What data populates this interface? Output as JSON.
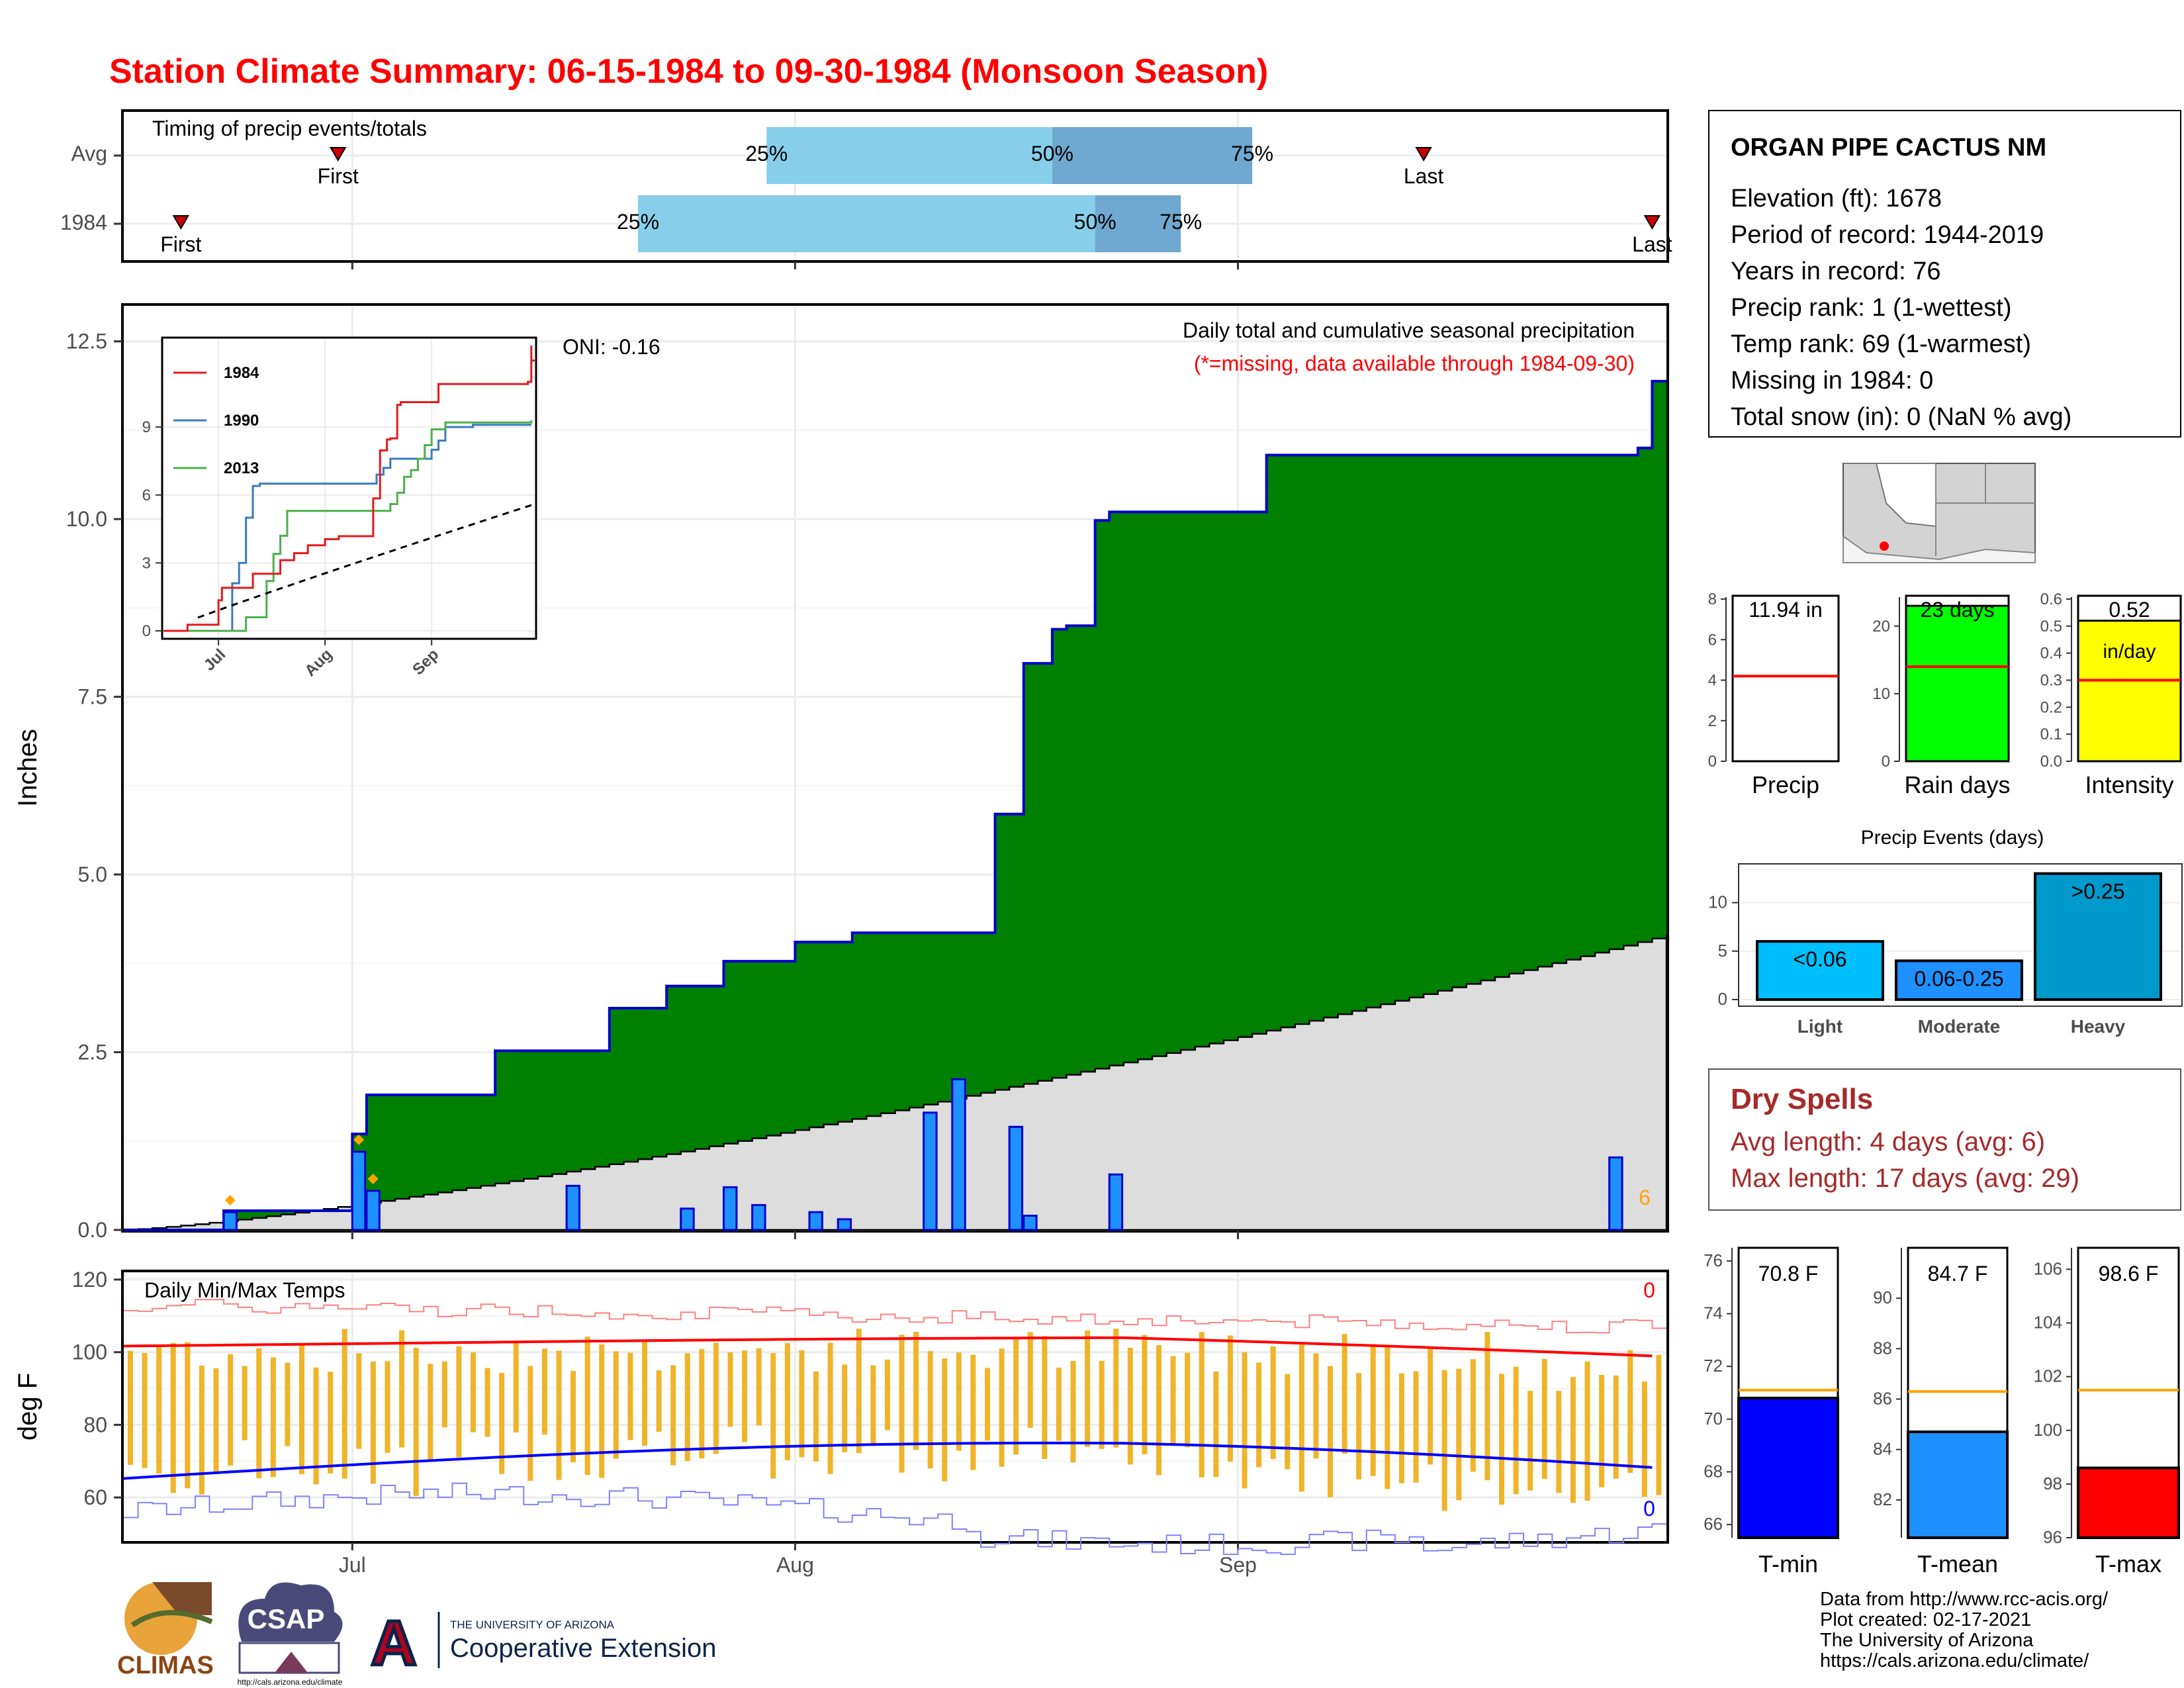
{
  "title": "Station Climate Summary: 06-15-1984 to 09-30-1984 (Monsoon Season)",
  "colors": {
    "title": "#ff0000",
    "green": "#008000",
    "blue_line": "#0000cc",
    "bar_blue": "#1e90ff",
    "gray_fill": "#dddddd",
    "light_blue": "#87ceeb",
    "mid_blue": "#6fa8d0",
    "orange": "#ffa500",
    "tmax": "#ff0000",
    "tmin": "#0000ff",
    "tbar": "#f0b429",
    "maroon": "#a52a2a",
    "yellow": "#ffff00",
    "lime": "#00ff00"
  },
  "months": [
    "Jul",
    "Aug",
    "Sep"
  ],
  "timing": {
    "label": "Timing of precip events/totals",
    "rows": [
      "Avg",
      "1984"
    ],
    "avg": {
      "first": "First",
      "last": "Last",
      "p25": "25%",
      "p50": "50%",
      "p75": "75%",
      "first_day": 15,
      "last_day": 91,
      "p25_day": 45,
      "p50_day": 65,
      "p75_day": 79
    },
    "y1984": {
      "first": "First",
      "last": "Last",
      "p25": "25%",
      "p50": "50%",
      "p75": "75%",
      "first_day": 4,
      "last_day": 107,
      "p25_day": 36,
      "p50_day": 68,
      "p75_day": 74
    }
  },
  "precip": {
    "ylabel": "Inches",
    "title_line1": "Daily total and cumulative seasonal precipitation",
    "title_line2": "(*=missing, data available through 1984-09-30)",
    "oni": "ONI: -0.16",
    "missing_count": "6",
    "yticks": [
      "0.0",
      "2.5",
      "5.0",
      "7.5",
      "10.0",
      "12.5"
    ],
    "ylim": [
      0,
      13
    ]
  },
  "inset": {
    "yticks": [
      "0",
      "3",
      "6",
      "9"
    ],
    "legend": [
      "1984",
      "1990",
      "2013"
    ],
    "months": [
      "Jul",
      "Aug",
      "Sep"
    ]
  },
  "temps": {
    "label": "Daily Min/Max Temps",
    "ylabel": "deg F",
    "yticks": [
      "60",
      "80",
      "100",
      "120"
    ],
    "max_missing": "0",
    "min_missing": "0"
  },
  "station": {
    "name": "ORGAN PIPE CACTUS NM",
    "lines": [
      "Elevation (ft): 1678",
      "Period of record: 1944-2019",
      "Years in record: 76",
      "Precip rank: 1 (1-wettest)",
      "Temp rank: 69 (1-warmest)",
      "Missing in 1984: 0",
      "Total snow (in): 0 (NaN % avg)"
    ]
  },
  "summary_bars": [
    {
      "label": "Precip",
      "value_text": "11.94 in",
      "value": 11.94,
      "avg": 4.2,
      "yticks": [
        "0",
        "2",
        "4",
        "6",
        "8"
      ],
      "ymax": 8,
      "color": "#ffffff"
    },
    {
      "label": "Rain days",
      "value_text": "23 days",
      "value": 23,
      "avg": 14,
      "yticks": [
        "0",
        "10",
        "20"
      ],
      "ymax": 24,
      "color": "#00ff00"
    },
    {
      "label": "Intensity",
      "value_text": "0.52",
      "value_text2": "in/day",
      "value": 0.52,
      "avg": 0.3,
      "yticks": [
        "0.0",
        "0.1",
        "0.2",
        "0.3",
        "0.4",
        "0.5",
        "0.6"
      ],
      "ymax": 0.6,
      "color": "#ffff00"
    }
  ],
  "events": {
    "title": "Precip Events (days)",
    "yticks": [
      "0",
      "5",
      "10"
    ],
    "bars": [
      {
        "category": "Light",
        "label": "<0.06",
        "value": 6,
        "color": "#00bfff"
      },
      {
        "category": "Moderate",
        "label": "0.06-0.25",
        "value": 4,
        "color": "#1e90ff"
      },
      {
        "category": "Heavy",
        "label": ">0.25",
        "value": 13,
        "color": "#0099cc"
      }
    ]
  },
  "dry_spells": {
    "title": "Dry Spells",
    "line1": "Avg length: 4 days (avg: 6)",
    "line2": "Max length: 17 days (avg: 29)"
  },
  "temp_bars": [
    {
      "label": "T-min",
      "value_text": "70.8 F",
      "value": 70.8,
      "avg": 71.1,
      "yticks": [
        "66",
        "68",
        "70",
        "72",
        "74",
        "76"
      ],
      "ymin": 65.5,
      "ymax": 76.5,
      "color": "#0000ff"
    },
    {
      "label": "T-mean",
      "value_text": "84.7 F",
      "value": 84.7,
      "avg": 86.3,
      "yticks": [
        "82",
        "84",
        "86",
        "88",
        "90"
      ],
      "ymin": 80.5,
      "ymax": 92,
      "color": "#1e90ff"
    },
    {
      "label": "T-max",
      "value_text": "98.6 F",
      "value": 98.6,
      "avg": 101.5,
      "yticks": [
        "96",
        "98",
        "100",
        "102",
        "104",
        "106"
      ],
      "ymin": 96,
      "ymax": 106.8,
      "color": "#ff0000"
    }
  ],
  "footer": {
    "lines": [
      "Data from http://www.rcc-acis.org/",
      "Plot created: 02-17-2021",
      "The University of Arizona",
      "https://cals.arizona.edu/climate/"
    ]
  },
  "logos": {
    "climas": "CLIMAS",
    "csap": "CSAP",
    "csap_url": "http://cals.arizona.edu/climate",
    "ua_small": "THE UNIVERSITY OF ARIZONA",
    "ua_big": "Cooperative Extension",
    "ua_letter": "A"
  },
  "chart_data": {
    "type": "area",
    "title": "Daily total and cumulative seasonal precipitation",
    "xlabel": "",
    "ylabel": "Inches",
    "ylim": [
      0,
      13
    ],
    "x_start": "1984-06-15",
    "x_end": "1984-09-30",
    "daily_precip": [
      {
        "day": "1984-06-22",
        "value": 0.25
      },
      {
        "day": "1984-07-01",
        "value": 1.1
      },
      {
        "day": "1984-07-02",
        "value": 0.55
      },
      {
        "day": "1984-07-06",
        "value": 0.0
      },
      {
        "day": "1984-07-16",
        "value": 0.62
      },
      {
        "day": "1984-07-24",
        "value": 0.3
      },
      {
        "day": "1984-07-27",
        "value": 0.6
      },
      {
        "day": "1984-08-10",
        "value": 1.65
      },
      {
        "day": "1984-08-12",
        "value": 2.12
      },
      {
        "day": "1984-08-16",
        "value": 1.45
      },
      {
        "day": "1984-07-29",
        "value": 0.35
      },
      {
        "day": "1984-08-02",
        "value": 0.25
      },
      {
        "day": "1984-08-04",
        "value": 0.15
      },
      {
        "day": "1984-08-17",
        "value": 0.2
      },
      {
        "day": "1984-08-23",
        "value": 0.78
      },
      {
        "day": "1984-09-27",
        "value": 1.02
      }
    ],
    "cumulative_1984": [
      [
        0,
        0
      ],
      [
        7,
        0.27
      ],
      [
        16,
        1.35
      ],
      [
        17,
        1.9
      ],
      [
        26,
        2.52
      ],
      [
        34,
        3.12
      ],
      [
        38,
        3.43
      ],
      [
        42,
        3.78
      ],
      [
        47,
        4.05
      ],
      [
        51,
        4.18
      ],
      [
        60,
        4.18
      ],
      [
        61,
        5.85
      ],
      [
        63,
        7.97
      ],
      [
        65,
        8.45
      ],
      [
        66,
        8.5
      ],
      [
        68,
        9.98
      ],
      [
        69,
        10.1
      ],
      [
        80,
        10.9
      ],
      [
        106,
        11.0
      ],
      [
        107,
        11.94
      ],
      [
        108,
        11.94
      ]
    ],
    "average_cumulative_end": 4.15,
    "series": [
      {
        "name": "1984"
      },
      {
        "name": "1990"
      },
      {
        "name": "2013"
      }
    ]
  }
}
